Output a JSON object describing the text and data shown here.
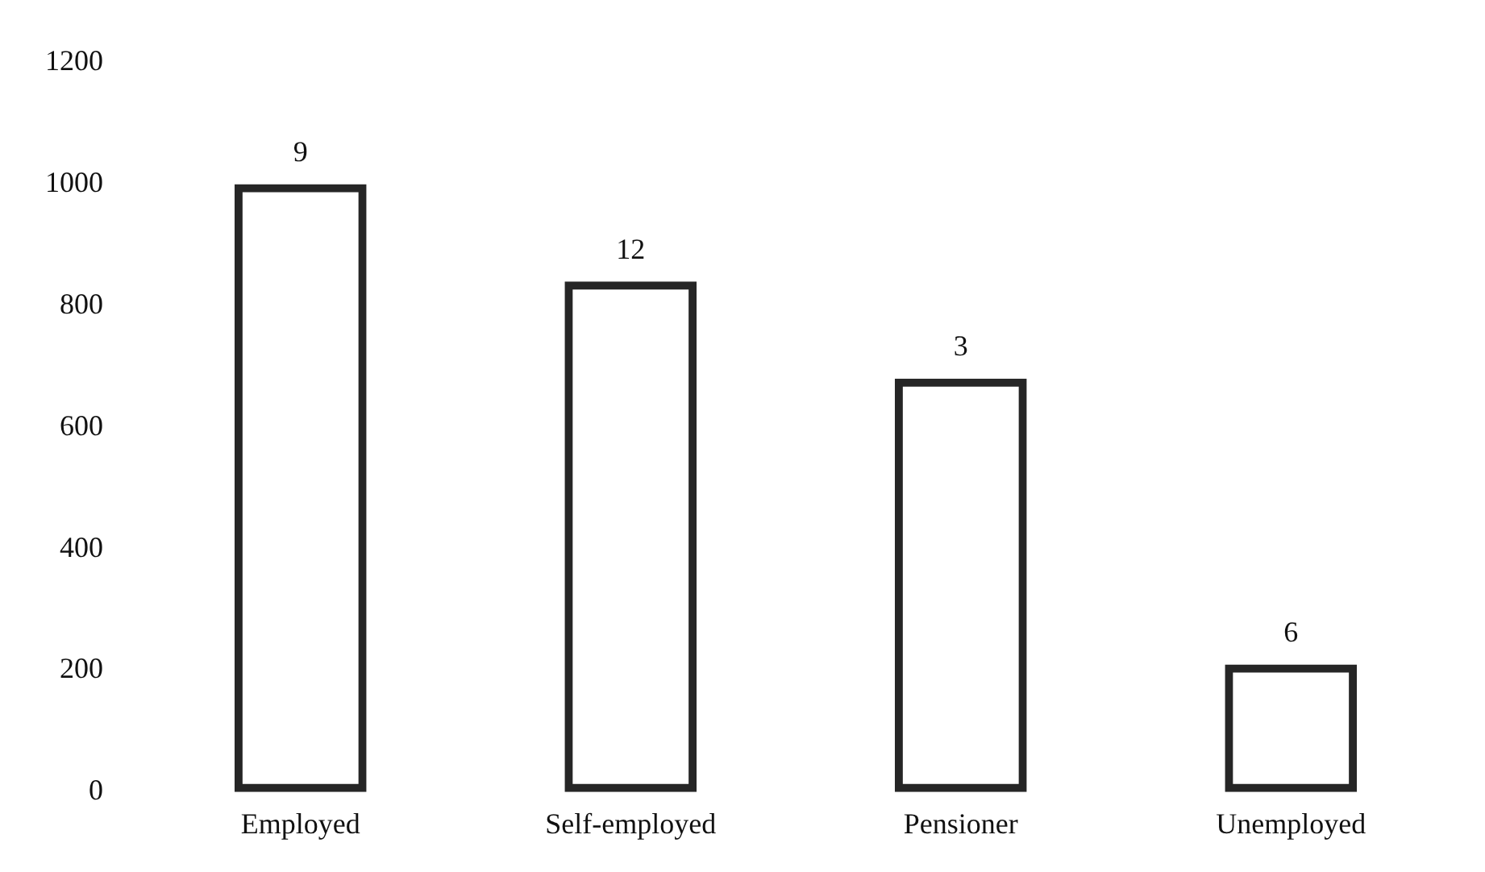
{
  "chart_data": {
    "type": "bar",
    "categories": [
      "Employed",
      "Self-employed",
      "Pensioner",
      "Unemployed"
    ],
    "values": [
      1000,
      840,
      680,
      210
    ],
    "color": "#262626",
    "ylim": [
      0,
      1200
    ],
    "yticks": [
      0,
      200,
      400,
      600,
      800,
      1000,
      1200
    ],
    "grid": false,
    "legend": false,
    "annotations": [
      {
        "text": "9",
        "x": "Employed",
        "y": 1000
      },
      {
        "text": "12",
        "x": "Self-employed",
        "y": 840
      },
      {
        "text": "3",
        "x": "Pensioner",
        "y": 680
      },
      {
        "text": "6",
        "x": "Unemployed",
        "y": 210
      }
    ]
  }
}
